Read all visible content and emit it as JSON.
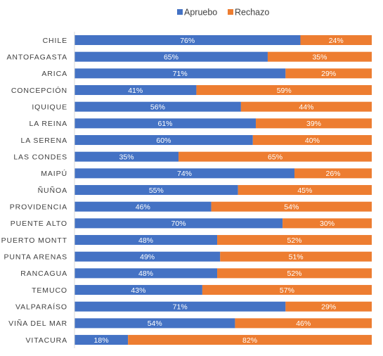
{
  "chart_data": {
    "type": "bar",
    "orientation": "horizontal",
    "stacked": "percent",
    "title": "",
    "xlabel": "",
    "ylabel": "",
    "xlim": [
      0,
      100
    ],
    "grid": false,
    "legend_position": "top",
    "categories": [
      "CHILE",
      "ANTOFAGASTA",
      "ARICA",
      "CONCEPCIÓN",
      "IQUIQUE",
      "LA REINA",
      "LA SERENA",
      "LAS CONDES",
      "MAIPÚ",
      "ÑUÑOA",
      "PROVIDENCIA",
      "PUENTE ALTO",
      "PUERTO MONTT",
      "PUNTA ARENAS",
      "RANCAGUA",
      "TEMUCO",
      "VALPARAÍSO",
      "VIÑA DEL MAR",
      "VITACURA"
    ],
    "series": [
      {
        "name": "Apruebo",
        "color": "#4472c4",
        "values": [
          76,
          65,
          71,
          41,
          56,
          61,
          60,
          35,
          74,
          55,
          46,
          70,
          48,
          49,
          48,
          43,
          71,
          54,
          18
        ]
      },
      {
        "name": "Rechazo",
        "color": "#ed7d31",
        "values": [
          24,
          35,
          29,
          59,
          44,
          39,
          40,
          65,
          26,
          45,
          54,
          30,
          52,
          51,
          52,
          57,
          29,
          46,
          82
        ]
      }
    ],
    "value_suffix": "%"
  }
}
